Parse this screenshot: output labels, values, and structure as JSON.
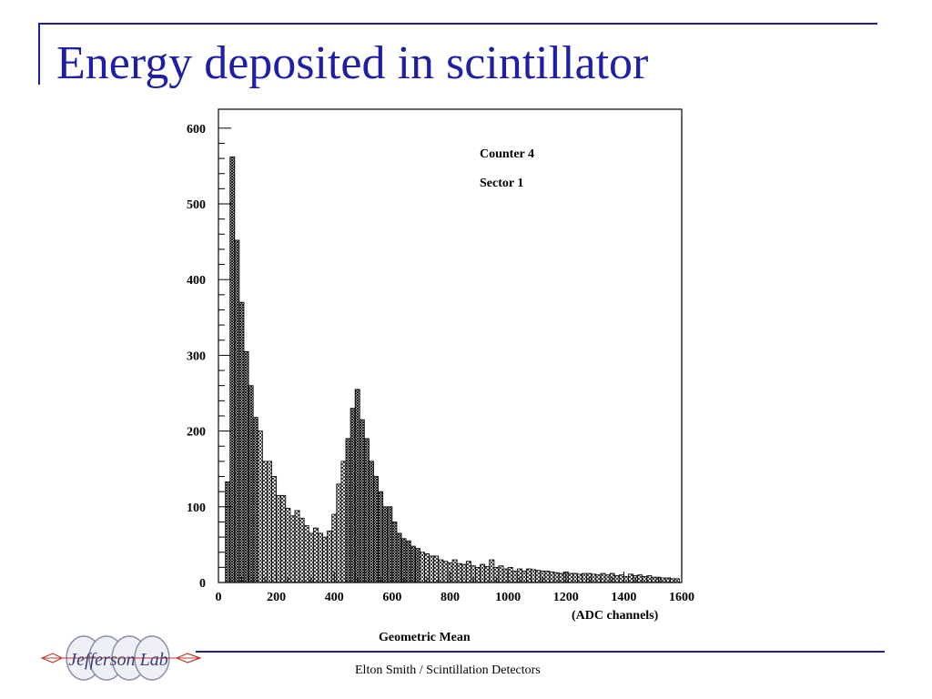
{
  "slide": {
    "title": "Energy deposited in scintillator",
    "footer": "Elton Smith / Scintillation Detectors",
    "logo_text": "Jefferson Lab"
  },
  "colors": {
    "title": "#1f1fa6",
    "rule": "#1f1f9a"
  },
  "chart_data": {
    "type": "bar",
    "xlabel": "Geometric Mean",
    "xunit": "(ADC channels)",
    "ylabel": "",
    "xlim": [
      0,
      1600
    ],
    "ylim": [
      0,
      625
    ],
    "annotations": [
      "Counter  4",
      "Sector  1"
    ],
    "bin_width": 16,
    "x": [
      32,
      48,
      64,
      80,
      96,
      112,
      128,
      144,
      160,
      176,
      192,
      208,
      224,
      240,
      256,
      272,
      288,
      304,
      320,
      336,
      352,
      368,
      384,
      400,
      416,
      432,
      448,
      464,
      480,
      496,
      512,
      528,
      544,
      560,
      576,
      592,
      608,
      624,
      640,
      656,
      672,
      688,
      704,
      720,
      736,
      752,
      768,
      784,
      800,
      816,
      832,
      848,
      864,
      880,
      896,
      912,
      928,
      944,
      960,
      976,
      992,
      1008,
      1024,
      1040,
      1056,
      1072,
      1088,
      1104,
      1120,
      1136,
      1152,
      1168,
      1184,
      1200,
      1216,
      1232,
      1248,
      1264,
      1280,
      1296,
      1312,
      1328,
      1344,
      1360,
      1376,
      1392,
      1408,
      1424,
      1440,
      1456,
      1472,
      1488,
      1504,
      1520,
      1536,
      1552,
      1568,
      1584
    ],
    "series": [
      {
        "values": [
          133,
          562,
          452,
          370,
          305,
          260,
          218,
          200,
          160,
          160,
          140,
          115,
          115,
          98,
          88,
          95,
          85,
          75,
          65,
          72,
          65,
          60,
          68,
          90,
          130,
          160,
          190,
          230,
          255,
          215,
          190,
          160,
          140,
          120,
          100,
          100,
          80,
          65,
          58,
          55,
          48,
          45,
          40,
          38,
          35,
          35,
          30,
          28,
          26,
          30,
          25,
          24,
          28,
          22,
          20,
          24,
          21,
          30,
          20,
          22,
          18,
          20,
          15,
          18,
          15,
          18,
          17,
          16,
          15,
          15,
          14,
          13,
          12,
          14,
          12,
          12,
          11,
          12,
          12,
          11,
          10,
          12,
          10,
          12,
          9,
          10,
          8,
          11,
          9,
          10,
          8,
          9,
          7,
          7,
          6,
          6,
          5,
          5
        ]
      }
    ]
  }
}
